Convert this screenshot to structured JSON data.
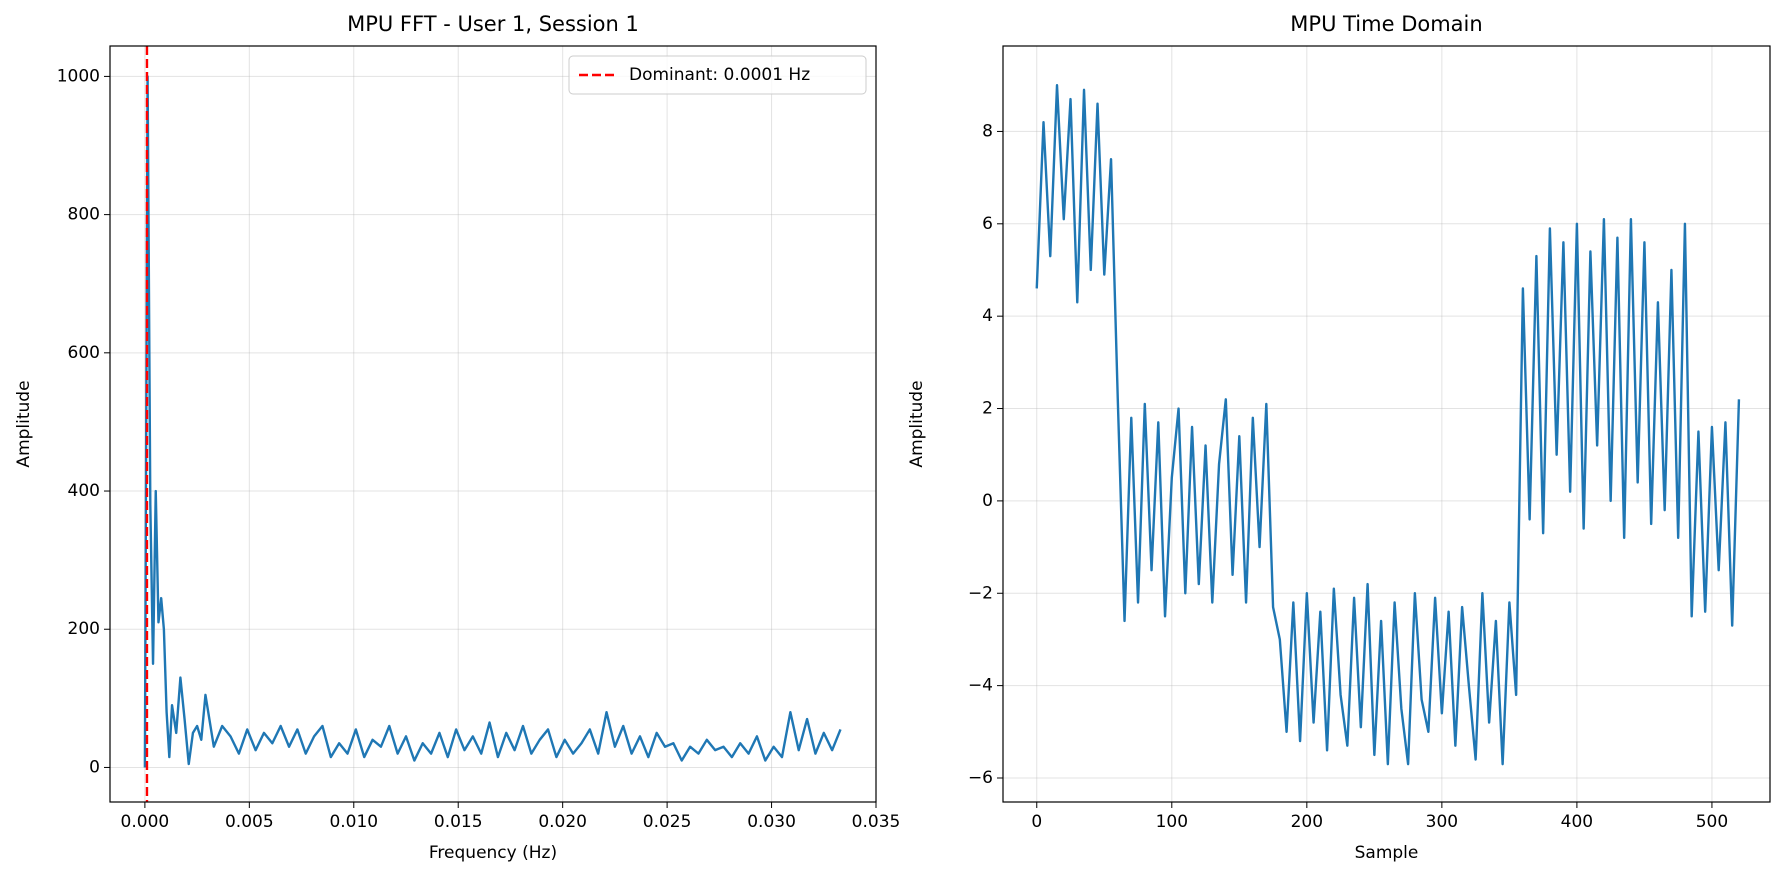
{
  "chart_data": [
    {
      "type": "line",
      "title": "MPU FFT - User 1, Session 1",
      "xlabel": "Frequency (Hz)",
      "ylabel": "Amplitude",
      "xlim": [
        -0.00167,
        0.035
      ],
      "ylim": [
        -50,
        1044
      ],
      "xticks": [
        {
          "value": 0,
          "label": "0.000"
        },
        {
          "value": 0.005,
          "label": "0.005"
        },
        {
          "value": 0.01,
          "label": "0.010"
        },
        {
          "value": 0.015,
          "label": "0.015"
        },
        {
          "value": 0.02,
          "label": "0.020"
        },
        {
          "value": 0.025,
          "label": "0.025"
        },
        {
          "value": 0.03,
          "label": "0.030"
        },
        {
          "value": 0.035,
          "label": "0.035"
        }
      ],
      "yticks": [
        0,
        200,
        400,
        600,
        800,
        1000
      ],
      "grid": true,
      "legend": "upper right",
      "x": [
        0,
        0.00013,
        0.00026,
        0.00039,
        0.00052,
        0.00065,
        0.00078,
        0.00091,
        0.00104,
        0.00117,
        0.0013,
        0.0015,
        0.0017,
        0.0019,
        0.0021,
        0.0023,
        0.0025,
        0.0027,
        0.0029,
        0.0033,
        0.0037,
        0.0041,
        0.0045,
        0.0049,
        0.0053,
        0.0057,
        0.0061,
        0.0065,
        0.0069,
        0.0073,
        0.0077,
        0.0081,
        0.0085,
        0.0089,
        0.0093,
        0.0097,
        0.0101,
        0.0105,
        0.0109,
        0.0113,
        0.0117,
        0.0121,
        0.0125,
        0.0129,
        0.0133,
        0.0137,
        0.0141,
        0.0145,
        0.0149,
        0.0153,
        0.0157,
        0.0161,
        0.0165,
        0.0169,
        0.0173,
        0.0177,
        0.0181,
        0.0185,
        0.0189,
        0.0193,
        0.0197,
        0.0201,
        0.0205,
        0.0209,
        0.0213,
        0.0217,
        0.0221,
        0.0225,
        0.0229,
        0.0233,
        0.0237,
        0.0241,
        0.0245,
        0.0249,
        0.0253,
        0.0257,
        0.0261,
        0.0265,
        0.0269,
        0.0273,
        0.0277,
        0.0281,
        0.0285,
        0.0289,
        0.0293,
        0.0297,
        0.0301,
        0.0305,
        0.0309,
        0.0313,
        0.0317,
        0.0321,
        0.0325,
        0.0329,
        0.0333
      ],
      "series": [
        {
          "color": "#1f77b4",
          "values": [
            0,
            1000,
            380,
            150,
            400,
            210,
            245,
            200,
            80,
            15,
            90,
            50,
            130,
            70,
            5,
            50,
            60,
            40,
            105,
            30,
            60,
            45,
            20,
            55,
            25,
            50,
            35,
            60,
            30,
            55,
            20,
            45,
            60,
            15,
            35,
            20,
            55,
            15,
            40,
            30,
            60,
            20,
            45,
            10,
            35,
            20,
            50,
            15,
            55,
            25,
            45,
            20,
            65,
            15,
            50,
            25,
            60,
            20,
            40,
            55,
            15,
            40,
            20,
            35,
            55,
            20,
            80,
            30,
            60,
            20,
            45,
            15,
            50,
            30,
            35,
            10,
            30,
            20,
            40,
            25,
            30,
            15,
            35,
            20,
            45,
            10,
            30,
            15,
            80,
            25,
            70,
            20,
            50,
            25,
            55
          ]
        }
      ],
      "vlines": [
        {
          "name": "Dominant: 0.0001 Hz",
          "x": 0.0001,
          "color": "#ff0000"
        }
      ]
    },
    {
      "type": "line",
      "title": "MPU Time Domain",
      "xlabel": "Sample",
      "ylabel": "Amplitude",
      "xlim": [
        -25,
        543
      ],
      "ylim": [
        -6.52,
        9.85
      ],
      "xticks": [
        0,
        100,
        200,
        300,
        400,
        500
      ],
      "yticks": [
        {
          "value": -6,
          "label": "−6"
        },
        {
          "value": -4,
          "label": "−4"
        },
        {
          "value": -2,
          "label": "−2"
        },
        0,
        2,
        4,
        6,
        8
      ],
      "grid": true,
      "x": [
        0,
        5,
        10,
        15,
        20,
        25,
        30,
        35,
        40,
        45,
        50,
        55,
        60,
        65,
        70,
        75,
        80,
        85,
        90,
        95,
        100,
        105,
        110,
        115,
        120,
        125,
        130,
        135,
        140,
        145,
        150,
        155,
        160,
        165,
        170,
        175,
        180,
        185,
        190,
        195,
        200,
        205,
        210,
        215,
        220,
        225,
        230,
        235,
        240,
        245,
        250,
        255,
        260,
        265,
        270,
        275,
        280,
        285,
        290,
        295,
        300,
        305,
        310,
        315,
        320,
        325,
        330,
        335,
        340,
        345,
        350,
        355,
        360,
        365,
        370,
        375,
        380,
        385,
        390,
        395,
        400,
        405,
        410,
        415,
        420,
        425,
        430,
        435,
        440,
        445,
        450,
        455,
        460,
        465,
        470,
        475,
        480,
        485,
        490,
        495,
        500,
        505,
        510,
        515,
        520
      ],
      "series": [
        {
          "color": "#1f77b4",
          "values": [
            4.6,
            8.2,
            5.3,
            9.0,
            6.1,
            8.7,
            4.3,
            8.9,
            5.0,
            8.6,
            4.9,
            7.4,
            2.2,
            -2.6,
            1.8,
            -2.2,
            2.1,
            -1.5,
            1.7,
            -2.5,
            0.5,
            2.0,
            -2.0,
            1.6,
            -1.8,
            1.2,
            -2.2,
            0.8,
            2.2,
            -1.6,
            1.4,
            -2.2,
            1.8,
            -1.0,
            2.1,
            -2.3,
            -3.0,
            -5.0,
            -2.2,
            -5.2,
            -2.0,
            -4.8,
            -2.4,
            -5.4,
            -1.9,
            -4.2,
            -5.3,
            -2.1,
            -4.9,
            -1.8,
            -5.5,
            -2.6,
            -5.7,
            -2.2,
            -4.5,
            -5.7,
            -2.0,
            -4.3,
            -5.0,
            -2.1,
            -4.6,
            -2.4,
            -5.3,
            -2.3,
            -4.0,
            -5.6,
            -2.0,
            -4.8,
            -2.6,
            -5.7,
            -2.2,
            -4.2,
            4.6,
            -0.4,
            5.3,
            -0.7,
            5.9,
            1.0,
            5.6,
            0.2,
            6.0,
            -0.6,
            5.4,
            1.2,
            6.1,
            0.0,
            5.7,
            -0.8,
            6.1,
            0.4,
            5.6,
            -0.5,
            4.3,
            -0.2,
            5.0,
            -0.8,
            6.0,
            -2.5,
            1.5,
            -2.4,
            1.6,
            -1.5,
            1.7,
            -2.7,
            2.2
          ]
        }
      ]
    }
  ]
}
